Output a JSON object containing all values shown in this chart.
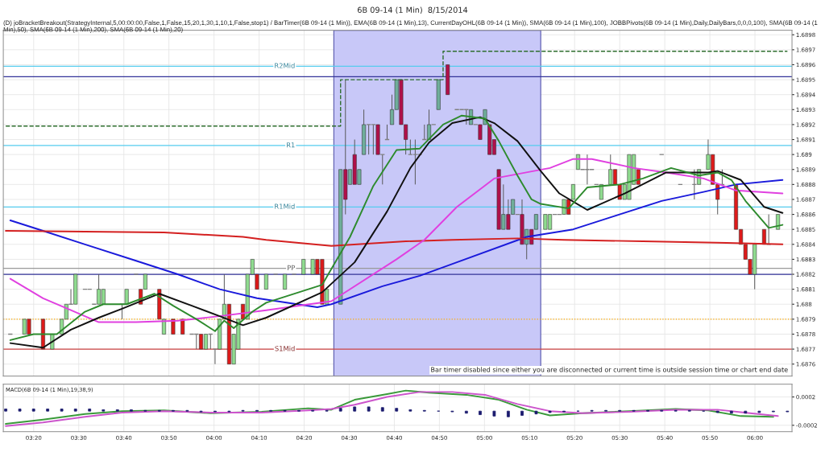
{
  "chart_data": [
    {
      "type": "candlestick",
      "title": "6B 09-14 (1 Min)  8/15/2014",
      "subtitle": "(D) joBracketBreakout(StrategyInternal,5,00:00:00,False,1,False,15,20,1,30,1,10,1,False,stop1) / BarTimer(6B 09-14 (1 Min)), EMA(6B 09-14 (1 Min),13), CurrentDayOHL(6B 09-14 (1 Min)), SMA(6B 09-14 (1 Min),100), JOBBPivots(6B 09-14 (1 Min),Daily,DailyBars,0,0,0,100), SMA(6B 09-14 (1 Min),50), SMA(6B 09-14 (1 Min),200), SMA(6B 09-14 (1 Min),20)",
      "x": [
        3.247,
        3.299,
        3.316,
        3.368,
        3.402,
        3.437,
        3.454,
        3.471,
        3.488,
        3.523,
        3.54,
        3.557,
        3.574,
        3.591,
        3.66,
        3.677,
        3.712,
        3.729,
        3.746,
        3.798,
        3.815,
        3.849,
        3.884,
        3.918,
        3.935,
        3.952,
        3.97,
        3.987,
        4.004,
        4.021,
        4.038,
        4.056,
        4.073,
        4.09,
        4.107,
        4.124,
        4.142,
        4.159,
        4.193,
        4.228,
        4.262,
        4.296,
        4.331,
        4.365,
        4.382,
        4.4,
        4.417,
        4.468,
        4.486,
        4.503,
        4.52,
        4.537,
        4.554,
        4.572,
        4.589,
        4.606,
        4.623,
        4.64,
        4.658,
        4.675,
        4.692,
        4.709,
        4.726,
        4.744,
        4.761,
        4.778,
        4.795,
        4.812,
        4.83,
        4.864,
        4.898,
        4.916,
        4.933,
        4.95,
        4.967,
        4.984,
        5.002,
        5.019,
        5.036,
        5.053,
        5.07,
        5.088,
        5.105,
        5.122,
        5.139,
        5.156,
        5.174,
        5.191,
        5.225,
        5.242,
        5.26,
        5.277,
        5.294,
        5.311,
        5.328,
        5.346,
        5.363,
        5.38,
        5.397,
        5.414,
        5.432,
        5.466,
        5.483,
        5.5,
        5.518,
        5.535,
        5.552,
        5.569,
        5.655,
        5.724,
        5.776,
        5.793,
        5.827,
        5.844,
        5.862,
        5.879,
        5.93,
        5.948,
        5.965,
        5.982,
        5.999,
        6.034,
        6.051,
        6.085
      ],
      "ohlc": [
        [
          1.6878,
          1.6878,
          1.6878,
          1.6878
        ],
        [
          1.6878,
          1.6879,
          1.6878,
          1.6879
        ],
        [
          1.6879,
          1.6879,
          1.6878,
          1.6878
        ],
        [
          1.6879,
          1.6879,
          1.6877,
          1.6877
        ],
        [
          1.6877,
          1.6878,
          1.6877,
          1.6878
        ],
        [
          1.6878,
          1.6879,
          1.6878,
          1.6879
        ],
        [
          1.6879,
          1.688,
          1.6879,
          1.688
        ],
        [
          1.688,
          1.6881,
          1.688,
          1.688
        ],
        [
          1.688,
          1.6882,
          1.688,
          1.6882
        ],
        [
          1.6881,
          1.6881,
          1.6881,
          1.6881
        ],
        [
          1.6881,
          1.6881,
          1.6881,
          1.6881
        ],
        [
          1.688,
          1.688,
          1.688,
          1.688
        ],
        [
          1.688,
          1.6882,
          1.688,
          1.6881
        ],
        [
          1.688,
          1.6881,
          1.688,
          1.6881
        ],
        [
          1.688,
          1.688,
          1.6879,
          1.688
        ],
        [
          1.688,
          1.6881,
          1.688,
          1.6881
        ],
        [
          1.6882,
          1.6882,
          1.6882,
          1.6882
        ],
        [
          1.6881,
          1.6881,
          1.688,
          1.688
        ],
        [
          1.6881,
          1.6882,
          1.6881,
          1.6882
        ],
        [
          1.6881,
          1.6881,
          1.6879,
          1.6879
        ],
        [
          1.6878,
          1.6879,
          1.6878,
          1.6879
        ],
        [
          1.6879,
          1.6879,
          1.6878,
          1.6878
        ],
        [
          1.6879,
          1.6879,
          1.6878,
          1.6878
        ],
        [
          1.6878,
          1.6878,
          1.6878,
          1.6878
        ],
        [
          1.6878,
          1.6878,
          1.6877,
          1.6878
        ],
        [
          1.6878,
          1.6878,
          1.6877,
          1.6877
        ],
        [
          1.6877,
          1.6878,
          1.6877,
          1.6878
        ],
        [
          1.6878,
          1.6878,
          1.6877,
          1.6878
        ],
        [
          1.6877,
          1.6877,
          1.6876,
          1.6877
        ],
        [
          1.6877,
          1.6879,
          1.6877,
          1.6879
        ],
        [
          1.6879,
          1.6882,
          1.6879,
          1.688
        ],
        [
          1.688,
          1.688,
          1.6876,
          1.6876
        ],
        [
          1.6876,
          1.6878,
          1.6876,
          1.6878
        ],
        [
          1.6877,
          1.6879,
          1.6877,
          1.6879
        ],
        [
          1.688,
          1.688,
          1.6879,
          1.6879
        ],
        [
          1.6879,
          1.6882,
          1.6879,
          1.6882
        ],
        [
          1.6882,
          1.6883,
          1.6882,
          1.6883
        ],
        [
          1.6882,
          1.6882,
          1.6881,
          1.6881
        ],
        [
          1.6881,
          1.6882,
          1.6881,
          1.6882
        ],
        [
          1.6882,
          1.6882,
          1.6882,
          1.6882
        ],
        [
          1.6881,
          1.6882,
          1.6881,
          1.6882
        ],
        [
          1.6882,
          1.6882,
          1.6882,
          1.6882
        ],
        [
          1.6882,
          1.6883,
          1.6882,
          1.6883
        ],
        [
          1.6882,
          1.6883,
          1.6882,
          1.6883
        ],
        [
          1.6883,
          1.6883,
          1.6882,
          1.6882
        ],
        [
          1.6883,
          1.6883,
          1.688,
          1.688
        ],
        [
          1.688,
          1.6881,
          1.688,
          1.6881
        ],
        [
          1.688,
          1.6889,
          1.688,
          1.6889
        ],
        [
          1.6889,
          1.6895,
          1.6886,
          1.6887
        ],
        [
          1.6888,
          1.6889,
          1.6888,
          1.6889
        ],
        [
          1.689,
          1.6891,
          1.6888,
          1.6888
        ],
        [
          1.6888,
          1.6889,
          1.6888,
          1.6889
        ],
        [
          1.689,
          1.6893,
          1.689,
          1.6892
        ],
        [
          1.6892,
          1.6892,
          1.689,
          1.6892
        ],
        [
          1.6892,
          1.6892,
          1.689,
          1.6892
        ],
        [
          1.6892,
          1.6892,
          1.689,
          1.689
        ],
        [
          1.689,
          1.689,
          1.6888,
          1.689
        ],
        [
          1.6891,
          1.6892,
          1.6891,
          1.6891
        ],
        [
          1.6892,
          1.6894,
          1.6892,
          1.6893
        ],
        [
          1.6893,
          1.6895,
          1.6893,
          1.6895
        ],
        [
          1.6895,
          1.6895,
          1.6892,
          1.6892
        ],
        [
          1.6892,
          1.6892,
          1.689,
          1.6891
        ],
        [
          1.689,
          1.6891,
          1.689,
          1.689
        ],
        [
          1.689,
          1.6891,
          1.6888,
          1.689
        ],
        [
          1.689,
          1.689,
          1.689,
          1.689
        ],
        [
          1.6891,
          1.6892,
          1.6891,
          1.6891
        ],
        [
          1.6891,
          1.6893,
          1.6891,
          1.6892
        ],
        [
          1.6892,
          1.6892,
          1.6892,
          1.6892
        ],
        [
          1.6893,
          1.6895,
          1.6893,
          1.6895
        ],
        [
          1.6896,
          1.6896,
          1.6894,
          1.6894
        ],
        [
          1.6893,
          1.6893,
          1.6893,
          1.6893
        ],
        [
          1.6893,
          1.6893,
          1.6893,
          1.6893
        ],
        [
          1.6893,
          1.6893,
          1.6892,
          1.6893
        ],
        [
          1.6892,
          1.6893,
          1.6892,
          1.6893
        ],
        [
          1.6892,
          1.6892,
          1.6892,
          1.6892
        ],
        [
          1.6892,
          1.6892,
          1.6891,
          1.6891
        ],
        [
          1.6892,
          1.6893,
          1.6892,
          1.6893
        ],
        [
          1.6892,
          1.6892,
          1.689,
          1.689
        ],
        [
          1.6891,
          1.6891,
          1.689,
          1.689
        ],
        [
          1.6889,
          1.6889,
          1.6885,
          1.6885
        ],
        [
          1.6885,
          1.6888,
          1.6885,
          1.6886
        ],
        [
          1.6886,
          1.6887,
          1.6885,
          1.6885
        ],
        [
          1.6886,
          1.6887,
          1.6886,
          1.6887
        ],
        [
          1.6886,
          1.6886,
          1.6886,
          1.6886
        ],
        [
          1.6886,
          1.6887,
          1.6884,
          1.6884
        ],
        [
          1.6884,
          1.6885,
          1.6883,
          1.6885
        ],
        [
          1.6885,
          1.6885,
          1.6884,
          1.6884
        ],
        [
          1.6885,
          1.6886,
          1.6885,
          1.6886
        ],
        [
          1.6885,
          1.6886,
          1.6885,
          1.6886
        ],
        [
          1.6885,
          1.6886,
          1.6885,
          1.6886
        ],
        [
          1.6886,
          1.6886,
          1.6886,
          1.6886
        ],
        [
          1.6886,
          1.6886,
          1.6886,
          1.6886
        ],
        [
          1.6886,
          1.6887,
          1.6886,
          1.6887
        ],
        [
          1.6887,
          1.6887,
          1.6886,
          1.6886
        ],
        [
          1.6887,
          1.6888,
          1.6887,
          1.6888
        ],
        [
          1.6889,
          1.689,
          1.6889,
          1.689
        ],
        [
          1.6889,
          1.6889,
          1.6889,
          1.6889
        ],
        [
          1.6889,
          1.689,
          1.6888,
          1.6889
        ],
        [
          1.6889,
          1.6889,
          1.6889,
          1.6889
        ],
        [
          1.6888,
          1.6888,
          1.6888,
          1.6888
        ],
        [
          1.6887,
          1.6888,
          1.6887,
          1.6888
        ],
        [
          1.6888,
          1.689,
          1.6888,
          1.6889
        ],
        [
          1.6889,
          1.6889,
          1.6888,
          1.6888
        ],
        [
          1.6888,
          1.6888,
          1.6887,
          1.6887
        ],
        [
          1.6887,
          1.6888,
          1.6887,
          1.6888
        ],
        [
          1.6887,
          1.689,
          1.6887,
          1.689
        ],
        [
          1.6888,
          1.689,
          1.6888,
          1.689
        ],
        [
          1.6889,
          1.6889,
          1.6888,
          1.6888
        ],
        [
          1.689,
          1.689,
          1.689,
          1.689
        ],
        [
          1.6888,
          1.6888,
          1.6888,
          1.6888
        ],
        [
          1.6888,
          1.6889,
          1.6887,
          1.6888
        ],
        [
          1.6888,
          1.6889,
          1.6888,
          1.6889
        ],
        [
          1.6889,
          1.6891,
          1.6889,
          1.689
        ],
        [
          1.689,
          1.689,
          1.6888,
          1.6888
        ],
        [
          1.6888,
          1.6888,
          1.6886,
          1.6887
        ],
        [
          1.6888,
          1.6889,
          1.6888,
          1.6888
        ],
        [
          1.6888,
          1.6888,
          1.6885,
          1.6885
        ],
        [
          1.6885,
          1.6885,
          1.6884,
          1.6884
        ],
        [
          1.6884,
          1.6884,
          1.6883,
          1.6883
        ],
        [
          1.6883,
          1.6883,
          1.6882,
          1.6882
        ],
        [
          1.6882,
          1.6884,
          1.6881,
          1.6884
        ],
        [
          1.6885,
          1.6885,
          1.6884,
          1.6884
        ],
        [
          1.6884,
          1.6886,
          1.6884,
          1.6884
        ],
        [
          1.6885,
          1.6886,
          1.6885,
          1.6886
        ]
      ],
      "colors": [
        "#808080",
        "#8fdb8f",
        "#dd1a1a",
        "#dd1a1a",
        "#8fdb8f",
        "#8fdb8f",
        "#8fdb8f",
        "#808080",
        "#8fdb8f",
        "#808080",
        "#808080",
        "#808080",
        "#8fdb8f",
        "#8fdb8f",
        "#808080",
        "#8fdb8f",
        "#808080",
        "#dd1a1a",
        "#8fdb8f",
        "#dd1a1a",
        "#8fdb8f",
        "#dd1a1a",
        "#dd1a1a",
        "#808080",
        "#808080",
        "#dd1a1a",
        "#8fdb8f",
        "#808080",
        "#808080",
        "#8fdb8f",
        "#8fdb8f",
        "#dd1a1a",
        "#8fdb8f",
        "#8fdb8f",
        "#dd1a1a",
        "#8fdb8f",
        "#8fdb8f",
        "#dd1a1a",
        "#8fdb8f",
        "#808080",
        "#8fdb8f",
        "#808080",
        "#8fdb8f",
        "#8fdb8f",
        "#dd1a1a",
        "#dd1a1a",
        "#8fdb8f",
        "#6fae9a",
        "#b0104a",
        "#6fae9a",
        "#b0104a",
        "#6fae9a",
        "#6fae9a",
        "#808080",
        "#808080",
        "#b0104a",
        "#808080",
        "#808080",
        "#6fae9a",
        "#6fae9a",
        "#b0104a",
        "#b0104a",
        "#808080",
        "#808080",
        "#808080",
        "#808080",
        "#6fae9a",
        "#808080",
        "#6fae9a",
        "#b0104a",
        "#808080",
        "#808080",
        "#808080",
        "#6fae9a",
        "#808080",
        "#b0104a",
        "#6fae9a",
        "#b0104a",
        "#b0104a",
        "#b0104a",
        "#6fae9a",
        "#b0104a",
        "#6fae9a",
        "#808080",
        "#b0104a",
        "#6fae9a",
        "#b0104a",
        "#6fae9a",
        "#8fdb8f",
        "#8fdb8f",
        "#808080",
        "#808080",
        "#8fdb8f",
        "#dd1a1a",
        "#8fdb8f",
        "#8fdb8f",
        "#808080",
        "#808080",
        "#808080",
        "#808080",
        "#8fdb8f",
        "#8fdb8f",
        "#dd1a1a",
        "#dd1a1a",
        "#8fdb8f",
        "#8fdb8f",
        "#8fdb8f",
        "#dd1a1a",
        "#808080",
        "#808080",
        "#808080",
        "#8fdb8f",
        "#8fdb8f",
        "#dd1a1a",
        "#dd1a1a",
        "#808080",
        "#dd1a1a",
        "#dd1a1a",
        "#dd1a1a",
        "#dd1a1a",
        "#8fdb8f",
        "#dd1a1a",
        "#808080",
        "#8fdb8f"
      ],
      "series": [
        {
          "type": "line",
          "color": "#1a1adb",
          "x": [
            3.247,
            3.368,
            3.523,
            3.712,
            3.866,
            4.021,
            4.159,
            4.382,
            4.434,
            4.623,
            4.761,
            4.898,
            5.156,
            5.328,
            5.483,
            5.655,
            5.81,
            5.93,
            6.102
          ],
          "values": [
            1.68856,
            1.68849,
            1.6884,
            1.68829,
            1.6882,
            1.6881,
            1.68804,
            1.68798,
            1.688,
            1.68812,
            1.68819,
            1.68828,
            1.68845,
            1.6885,
            1.68859,
            1.68869,
            1.68875,
            1.6888,
            1.68883
          ]
        },
        {
          "type": "line",
          "color": "#d42020",
          "x": [
            3.23,
            3.815,
            4.107,
            4.193,
            4.434,
            4.709,
            4.881,
            5.122,
            5.294,
            5.586,
            5.896,
            6.102
          ],
          "values": [
            1.68849,
            1.68848,
            1.68845,
            1.68843,
            1.68839,
            1.68842,
            1.68843,
            1.68844,
            1.68843,
            1.68842,
            1.68841,
            1.6884
          ]
        },
        {
          "type": "line",
          "color": "#e040e0",
          "x": [
            3.247,
            3.368,
            3.471,
            3.574,
            3.712,
            3.866,
            4.021,
            4.193,
            4.434,
            4.675,
            4.778,
            4.898,
            5.036,
            5.242,
            5.328,
            5.397,
            5.552,
            5.672,
            5.81,
            5.93,
            6.102
          ],
          "values": [
            1.68817,
            1.68804,
            1.68796,
            1.68788,
            1.68788,
            1.68789,
            1.68792,
            1.68796,
            1.68802,
            1.6883,
            1.68843,
            1.68865,
            1.68884,
            1.68891,
            1.68897,
            1.68897,
            1.68891,
            1.68888,
            1.68884,
            1.68876,
            1.68874
          ]
        },
        {
          "type": "line",
          "color": "#111111",
          "x": [
            3.247,
            3.368,
            3.471,
            3.574,
            3.66,
            3.798,
            3.918,
            4.021,
            4.107,
            4.193,
            4.4,
            4.52,
            4.64,
            4.726,
            4.795,
            4.881,
            4.984,
            5.036,
            5.122,
            5.208,
            5.277,
            5.38,
            5.518,
            5.672,
            5.827,
            5.862,
            5.948,
            6.034,
            6.102
          ],
          "values": [
            1.68774,
            1.68771,
            1.68783,
            1.68791,
            1.68797,
            1.68807,
            1.68799,
            1.68792,
            1.68786,
            1.68791,
            1.68808,
            1.68828,
            1.68862,
            1.68891,
            1.68908,
            1.68921,
            1.68925,
            1.68921,
            1.68909,
            1.68889,
            1.68874,
            1.68863,
            1.68874,
            1.68888,
            1.68888,
            1.68889,
            1.68883,
            1.68865,
            1.68861
          ]
        },
        {
          "type": "line",
          "color": "#2e8b2e",
          "x": [
            3.247,
            3.333,
            3.419,
            3.523,
            3.591,
            3.677,
            3.78,
            3.849,
            3.935,
            4.004,
            4.038,
            4.073,
            4.142,
            4.193,
            4.4,
            4.503,
            4.589,
            4.675,
            4.761,
            4.847,
            4.916,
            5.002,
            5.053,
            5.122,
            5.174,
            5.208,
            5.311,
            5.38,
            5.5,
            5.586,
            5.69,
            5.793,
            5.862,
            5.913,
            5.965,
            6.051,
            6.102
          ],
          "values": [
            1.68776,
            1.6878,
            1.6878,
            1.68795,
            1.688,
            1.688,
            1.68807,
            1.68799,
            1.6879,
            1.68782,
            1.68789,
            1.68784,
            1.68795,
            1.68801,
            1.68813,
            1.68845,
            1.68879,
            1.68903,
            1.68904,
            1.6892,
            1.68926,
            1.68924,
            1.68909,
            1.68886,
            1.6887,
            1.68867,
            1.68864,
            1.68878,
            1.6888,
            1.68884,
            1.68891,
            1.68886,
            1.68888,
            1.68883,
            1.68869,
            1.68851,
            1.68853
          ]
        },
        {
          "type": "step",
          "color": "#2e6e2e",
          "line_style": "dashed",
          "x": [
            3.23,
            4.468,
            4.847,
            6.12
          ],
          "values": [
            1.68919,
            1.6895,
            1.68969,
            1.68969
          ]
        }
      ],
      "ref_lines": [
        {
          "axis": "y",
          "value": 1.68959,
          "label": "R2Mid",
          "color": "#55ccee"
        },
        {
          "axis": "y",
          "value": 1.68952,
          "color": "#333399"
        },
        {
          "axis": "y",
          "value": 1.68906,
          "label": "R1",
          "color": "#55ccee"
        },
        {
          "axis": "y",
          "value": 1.68865,
          "label": "R1Mid",
          "color": "#55ccee"
        },
        {
          "axis": "y",
          "value": 1.68824,
          "label": "PP",
          "color": "#999999"
        },
        {
          "axis": "y",
          "value": 1.6882,
          "color": "#333399"
        },
        {
          "axis": "y",
          "value": 1.6879,
          "color": "#ffaa00",
          "line_style": "dotted"
        },
        {
          "axis": "y",
          "value": 1.6877,
          "label": "S1Mid",
          "color": "#cc4444"
        }
      ],
      "bands": [
        {
          "axis": "x",
          "from": 4.443,
          "to": 5.208,
          "color": "#c8c8f8"
        }
      ],
      "annotations": [
        "Bar timer disabled since either you are disconnected or current time is outside session time or chart end date"
      ],
      "xlim": [
        3.221,
        6.137
      ],
      "xticks": [
        {
          "value": 3.3333,
          "label": null
        },
        {
          "value": 3.5,
          "label": null
        },
        {
          "value": 3.6667,
          "label": null
        },
        {
          "value": 3.8333,
          "label": null
        },
        {
          "value": 4,
          "label": null
        },
        {
          "value": 4.1667,
          "label": null
        },
        {
          "value": 4.3333,
          "label": null
        },
        {
          "value": 4.5,
          "label": null
        },
        {
          "value": 4.6667,
          "label": null
        },
        {
          "value": 4.8333,
          "label": null
        },
        {
          "value": 5,
          "label": null
        },
        {
          "value": 5.1667,
          "label": null
        },
        {
          "value": 5.3333,
          "label": null
        },
        {
          "value": 5.5,
          "label": null
        },
        {
          "value": 5.6667,
          "label": null
        },
        {
          "value": 5.8333,
          "label": null
        },
        {
          "value": 6,
          "label": null
        }
      ],
      "ylim": [
        1.68752,
        1.68983
      ],
      "yticks": [
        1.6876,
        1.6877,
        1.6878,
        1.6879,
        1.688,
        1.6881,
        1.6882,
        1.6883,
        1.6884,
        1.6885,
        1.6886,
        1.6887,
        1.6888,
        1.6889,
        1.689,
        1.6891,
        1.6892,
        1.6893,
        1.6894,
        1.6895,
        1.6896,
        1.6897,
        1.6898
      ],
      "tick_labels": "y",
      "grid": true,
      "legend": false
    },
    {
      "type": "line",
      "title": "MACD(6B 09-14 (1 Min),19,38,9)",
      "series": [
        {
          "type": "bar",
          "color": "#1a1a6e",
          "x": [
            3.23,
            3.282,
            3.333,
            3.385,
            3.437,
            3.488,
            3.54,
            3.591,
            3.643,
            3.694,
            3.746,
            3.798,
            3.849,
            3.901,
            3.952,
            4.004,
            4.056,
            4.107,
            4.159,
            4.21,
            4.262,
            4.314,
            4.365,
            4.417,
            4.468,
            4.52,
            4.572,
            4.623,
            4.675,
            4.726,
            4.778,
            4.83,
            4.881,
            4.933,
            4.984,
            5.036,
            5.088,
            5.139,
            5.191,
            5.242,
            5.294,
            5.346,
            5.397,
            5.449,
            5.5,
            5.552,
            5.604,
            5.655,
            5.707,
            5.758,
            5.81,
            5.862,
            5.913,
            5.965,
            6.016,
            6.068,
            6.12
          ],
          "values": [
            3e-05,
            3e-05,
            3e-05,
            3e-05,
            3e-05,
            3e-05,
            3e-05,
            2e-05,
            2e-05,
            2e-05,
            1e-05,
            1e-05,
            1e-05,
            1e-05,
            -1e-05,
            -1e-05,
            -1e-05,
            1e-05,
            1e-05,
            1e-05,
            1e-05,
            1e-05,
            1e-05,
            1e-05,
            4e-05,
            6e-05,
            6e-05,
            5e-05,
            4e-05,
            2e-05,
            1e-05,
            0,
            -1e-05,
            -3e-05,
            -5e-05,
            -7e-05,
            -8e-05,
            -6e-05,
            -4e-05,
            -2e-05,
            -1e-05,
            0,
            1e-05,
            1e-05,
            1e-05,
            1e-05,
            1e-05,
            1e-05,
            1e-05,
            1e-05,
            0,
            -2e-05,
            -3e-05,
            -3e-05,
            -2e-05,
            -1e-05,
            -1e-05
          ]
        },
        {
          "type": "line",
          "color": "#3a9a3a",
          "x": [
            3.23,
            3.368,
            3.523,
            3.66,
            3.815,
            3.987,
            4.176,
            4.348,
            4.434,
            4.52,
            4.64,
            4.709,
            4.795,
            4.933,
            5.053,
            5.156,
            5.242,
            5.363,
            5.535,
            5.707,
            5.827,
            5.948,
            6.068
          ],
          "values": [
            -0.00018,
            -0.00012,
            -4e-05,
            0,
            1e-05,
            -3e-05,
            -1e-05,
            4e-05,
            2e-05,
            0.00016,
            0.00024,
            0.00029,
            0.00026,
            0.00023,
            0.00016,
            2e-05,
            -6e-05,
            -3e-05,
            0,
            3e-05,
            1e-05,
            -7e-05,
            -8e-05
          ]
        },
        {
          "type": "line",
          "color": "#cc55cc",
          "x": [
            3.23,
            3.368,
            3.523,
            3.66,
            3.815,
            3.987,
            4.176,
            4.348,
            4.434,
            4.52,
            4.64,
            4.761,
            4.881,
            5.002,
            5.122,
            5.242,
            5.363,
            5.535,
            5.707,
            5.862,
            5.982,
            6.085
          ],
          "values": [
            -0.00021,
            -0.00016,
            -8e-05,
            -2e-05,
            0,
            -2e-05,
            -2e-05,
            1e-05,
            3e-05,
            9e-05,
            0.0002,
            0.00027,
            0.00027,
            0.00023,
            0.0001,
            0,
            -3e-05,
            -1e-05,
            2e-05,
            2e-05,
            -3e-05,
            -7e-05
          ]
        }
      ],
      "xlim": [
        3.221,
        6.137
      ],
      "xticks": [
        {
          "value": 3.3333,
          "label": "03:20"
        },
        {
          "value": 3.5,
          "label": "03:30"
        },
        {
          "value": 3.6667,
          "label": "03:40"
        },
        {
          "value": 3.8333,
          "label": "03:50"
        },
        {
          "value": 4,
          "label": "04:00"
        },
        {
          "value": 4.1667,
          "label": "04:10"
        },
        {
          "value": 4.3333,
          "label": "04:20"
        },
        {
          "value": 4.5,
          "label": "04:30"
        },
        {
          "value": 4.6667,
          "label": "04:40"
        },
        {
          "value": 4.8333,
          "label": "04:50"
        },
        {
          "value": 5,
          "label": "05:00"
        },
        {
          "value": 5.1667,
          "label": "05:10"
        },
        {
          "value": 5.3333,
          "label": "05:20"
        },
        {
          "value": 5.5,
          "label": "05:30"
        },
        {
          "value": 5.6667,
          "label": "05:40"
        },
        {
          "value": 5.8333,
          "label": "05:50"
        },
        {
          "value": 6,
          "label": "06:00"
        }
      ],
      "ylim": [
        -0.00029,
        0.00038
      ],
      "yticks": [
        {
          "value": -0.0002,
          "label": "-0.0002"
        },
        0.0002
      ],
      "grid": true,
      "legend": false
    }
  ]
}
